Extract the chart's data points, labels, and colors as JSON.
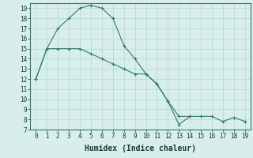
{
  "xlabel": "Humidex (Indice chaleur)",
  "line1_x": [
    0,
    1,
    2,
    3,
    4,
    5,
    6,
    7,
    8,
    9,
    10,
    11,
    12,
    13,
    14,
    15,
    16,
    17,
    18,
    19
  ],
  "line1_y": [
    12,
    15,
    15,
    15,
    15,
    14.5,
    14,
    13.5,
    13,
    12.5,
    12.5,
    11.5,
    9.8,
    8.3,
    8.3,
    8.3,
    8.3,
    7.8,
    8.2,
    7.8
  ],
  "line2_x": [
    0,
    1,
    2,
    3,
    4,
    5,
    6,
    7,
    8,
    9,
    10,
    11,
    12,
    13,
    14
  ],
  "line2_y": [
    12,
    15,
    17,
    18,
    19,
    19.3,
    19,
    18,
    15.3,
    14,
    12.5,
    11.5,
    9.8,
    7.5,
    8.3
  ],
  "line_color": "#2e7b6e",
  "bg_color": "#d8eeea",
  "grid_color": "#b5d8d2",
  "xlim": [
    -0.5,
    19.5
  ],
  "ylim": [
    7,
    19.5
  ],
  "yticks": [
    7,
    8,
    9,
    10,
    11,
    12,
    13,
    14,
    15,
    16,
    17,
    18,
    19
  ],
  "xticks": [
    0,
    1,
    2,
    3,
    4,
    5,
    6,
    7,
    8,
    9,
    10,
    11,
    12,
    13,
    14,
    15,
    16,
    17,
    18,
    19
  ],
  "tick_fontsize": 5.5,
  "xlabel_fontsize": 7
}
